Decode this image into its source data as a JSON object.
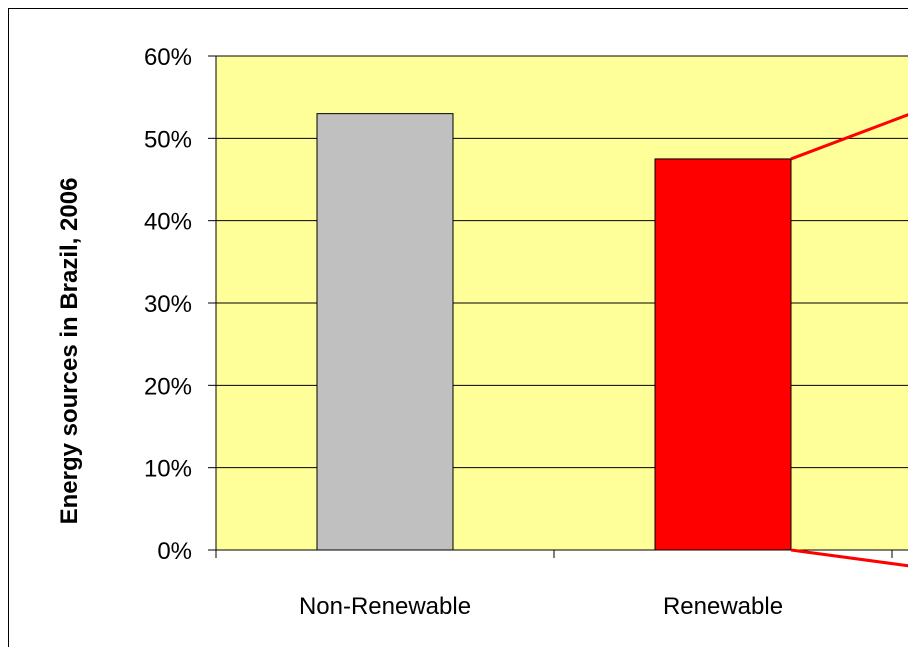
{
  "chart_data": {
    "type": "bar",
    "title": "",
    "xlabel": "",
    "ylabel": "Energy sources in Brazil, 2006",
    "categories": [
      "Non-Renewable",
      "Renewable"
    ],
    "values": [
      53.0,
      47.5
    ],
    "ylim": [
      0,
      60
    ],
    "ytick_values": [
      0,
      10,
      20,
      30,
      40,
      50,
      60
    ],
    "ytick_labels": [
      "0%",
      "10%",
      "20%",
      "30%",
      "40%",
      "50%",
      "60%"
    ],
    "grid": true,
    "legend": "none",
    "colors": {
      "plot_background": "#FFFF99",
      "bars": [
        "#C0C0C0",
        "#FF0000"
      ],
      "callout_lines": "#FF0000"
    }
  }
}
